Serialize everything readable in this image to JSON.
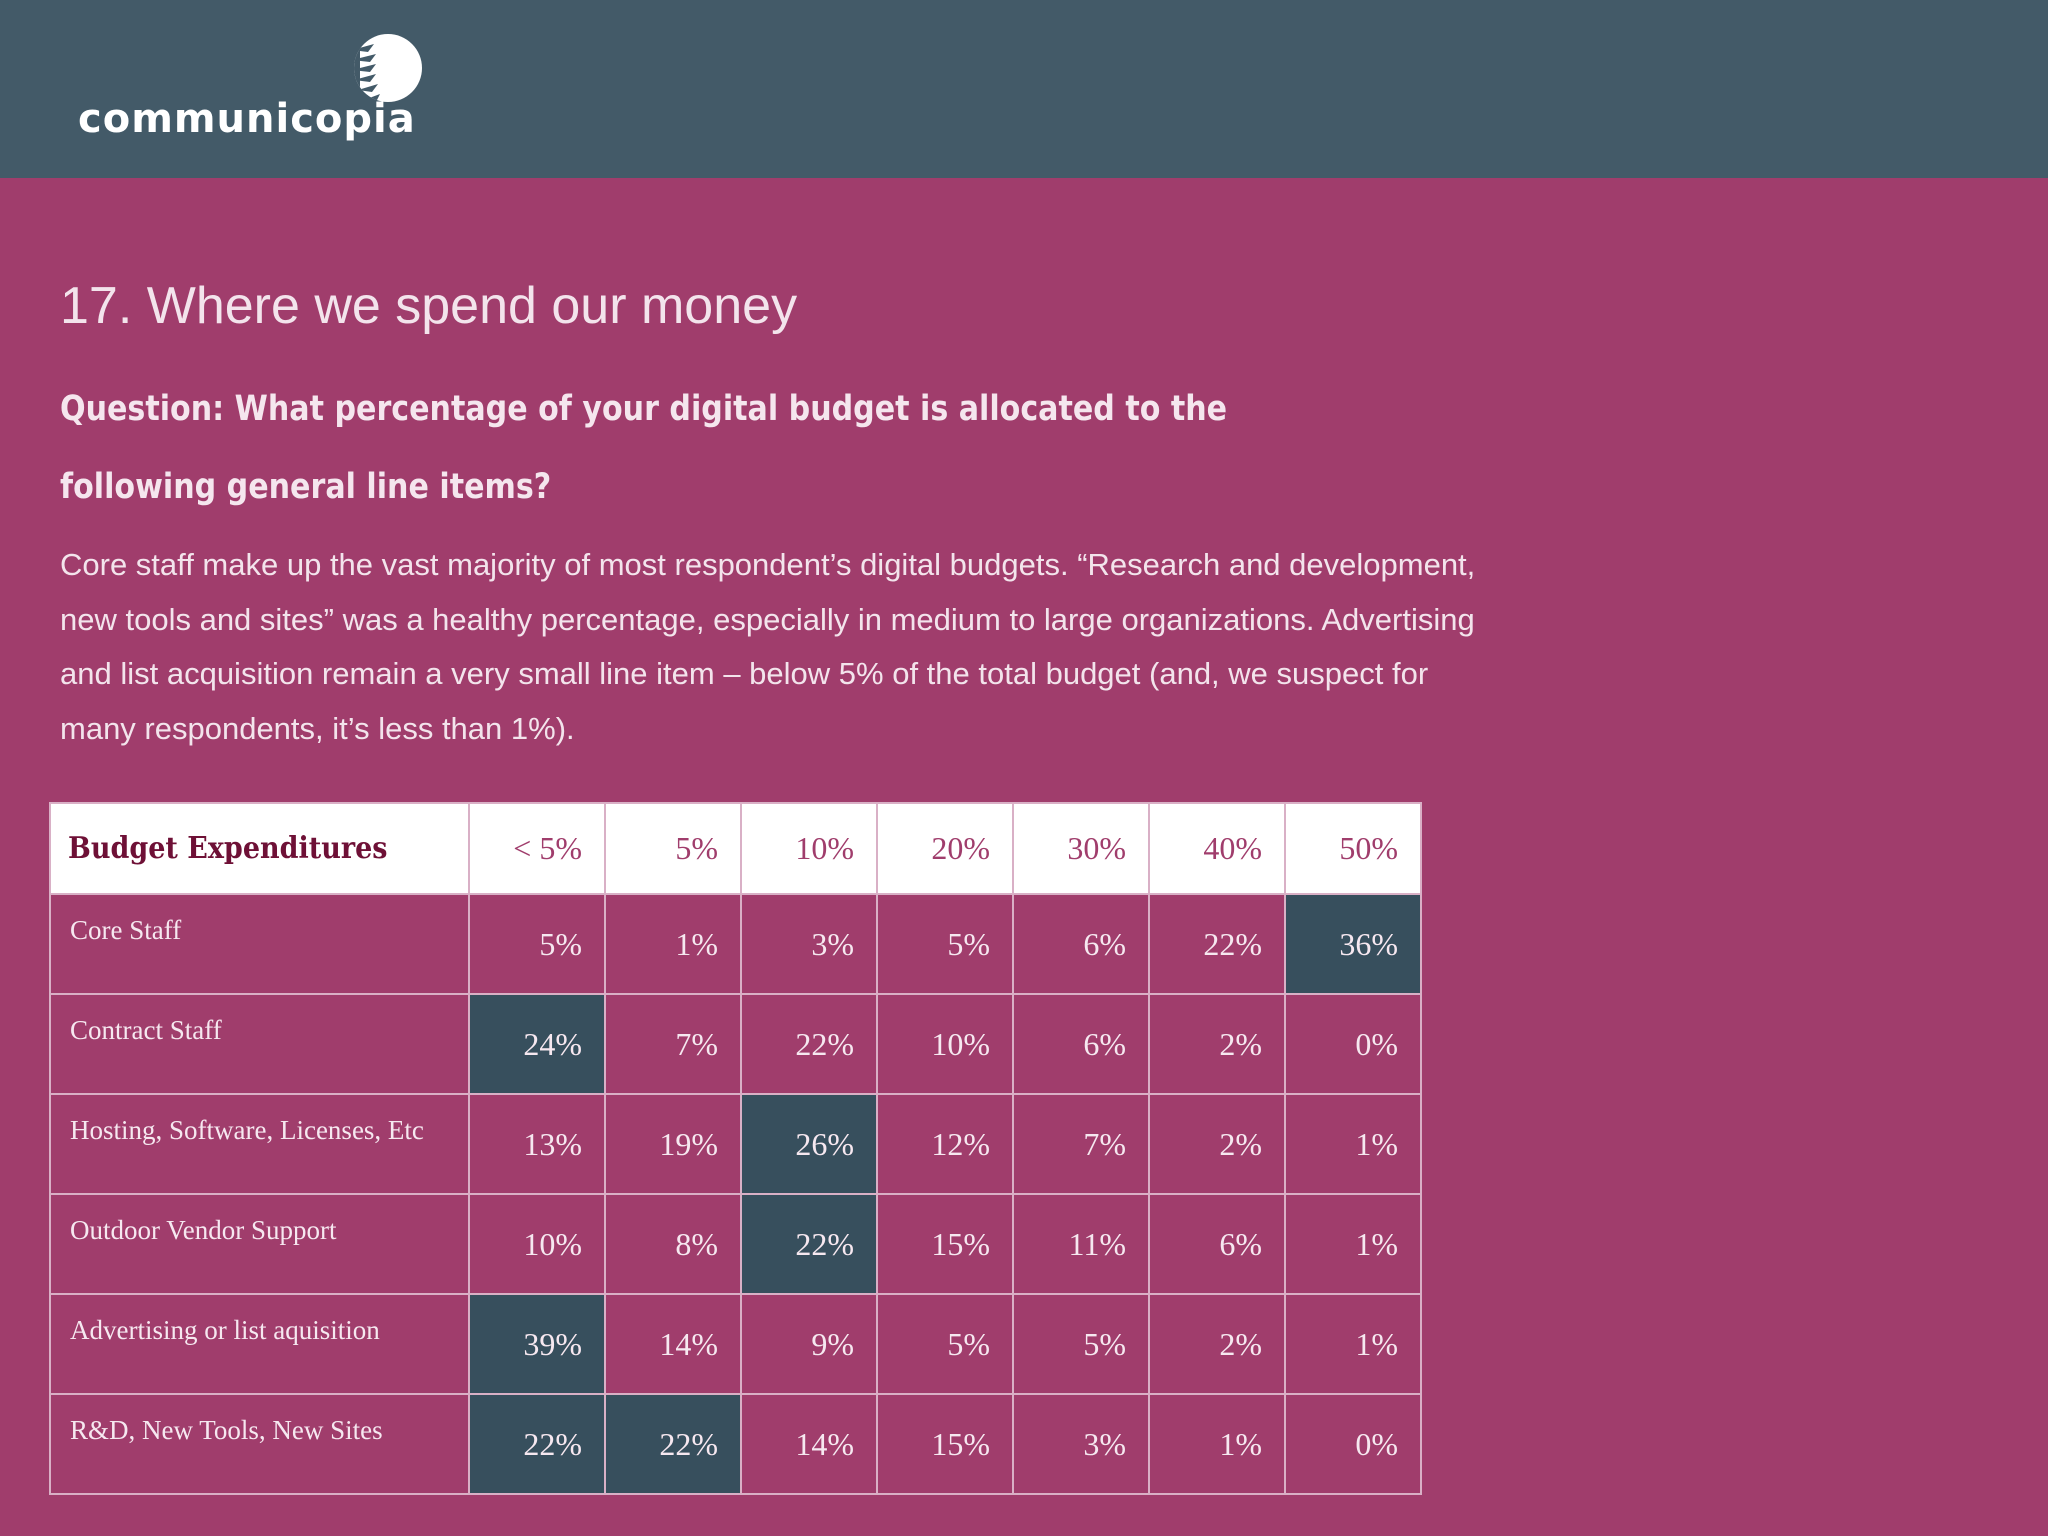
{
  "logo": {
    "wordmark": "communicopia",
    "mark_icon": "striped-circle-icon"
  },
  "slide": {
    "title": "17. Where we spend our money",
    "question": "Question: What percentage of your digital budget is allocated to the following general line items?",
    "body": "Core staff make up the vast majority of most respondent’s digital budgets. “Research and development, new tools and sites” was a healthy percentage, especially in medium to large organizations. Advertising and list acquisition remain a very small line item – below 5% of the total budget (and, we suspect for many respondents, it’s less than 1%)."
  },
  "colors": {
    "background": "#a03d6c",
    "header_bar": "#435a68",
    "highlight_cell": "#374f5d",
    "table_header_bg": "#ffffff",
    "table_header_text": "#a03d6c",
    "label_header_text": "#6e1036"
  },
  "table": {
    "header_label": "Budget Expenditures",
    "columns": [
      "< 5%",
      "5%",
      "10%",
      "20%",
      "30%",
      "40%",
      "50%"
    ],
    "rows": [
      {
        "label": "Core Staff",
        "values": [
          "5%",
          "1%",
          "3%",
          "5%",
          "6%",
          "22%",
          "36%"
        ],
        "highlight": [
          6
        ]
      },
      {
        "label": "Contract Staff",
        "values": [
          "24%",
          "7%",
          "22%",
          "10%",
          "6%",
          "2%",
          "0%"
        ],
        "highlight": [
          0
        ]
      },
      {
        "label": "Hosting, Software, Licenses, Etc",
        "values": [
          "13%",
          "19%",
          "26%",
          "12%",
          "7%",
          "2%",
          "1%"
        ],
        "highlight": [
          2
        ]
      },
      {
        "label": "Outdoor Vendor Support",
        "values": [
          "10%",
          "8%",
          "22%",
          "15%",
          "11%",
          "6%",
          "1%"
        ],
        "highlight": [
          2
        ]
      },
      {
        "label": "Advertising or list aquisition",
        "values": [
          "39%",
          "14%",
          "9%",
          "5%",
          "5%",
          "2%",
          "1%"
        ],
        "highlight": [
          0
        ]
      },
      {
        "label": "R&D, New Tools, New Sites",
        "values": [
          "22%",
          "22%",
          "14%",
          "15%",
          "3%",
          "1%",
          "0%"
        ],
        "highlight": [
          0,
          1
        ]
      }
    ]
  }
}
